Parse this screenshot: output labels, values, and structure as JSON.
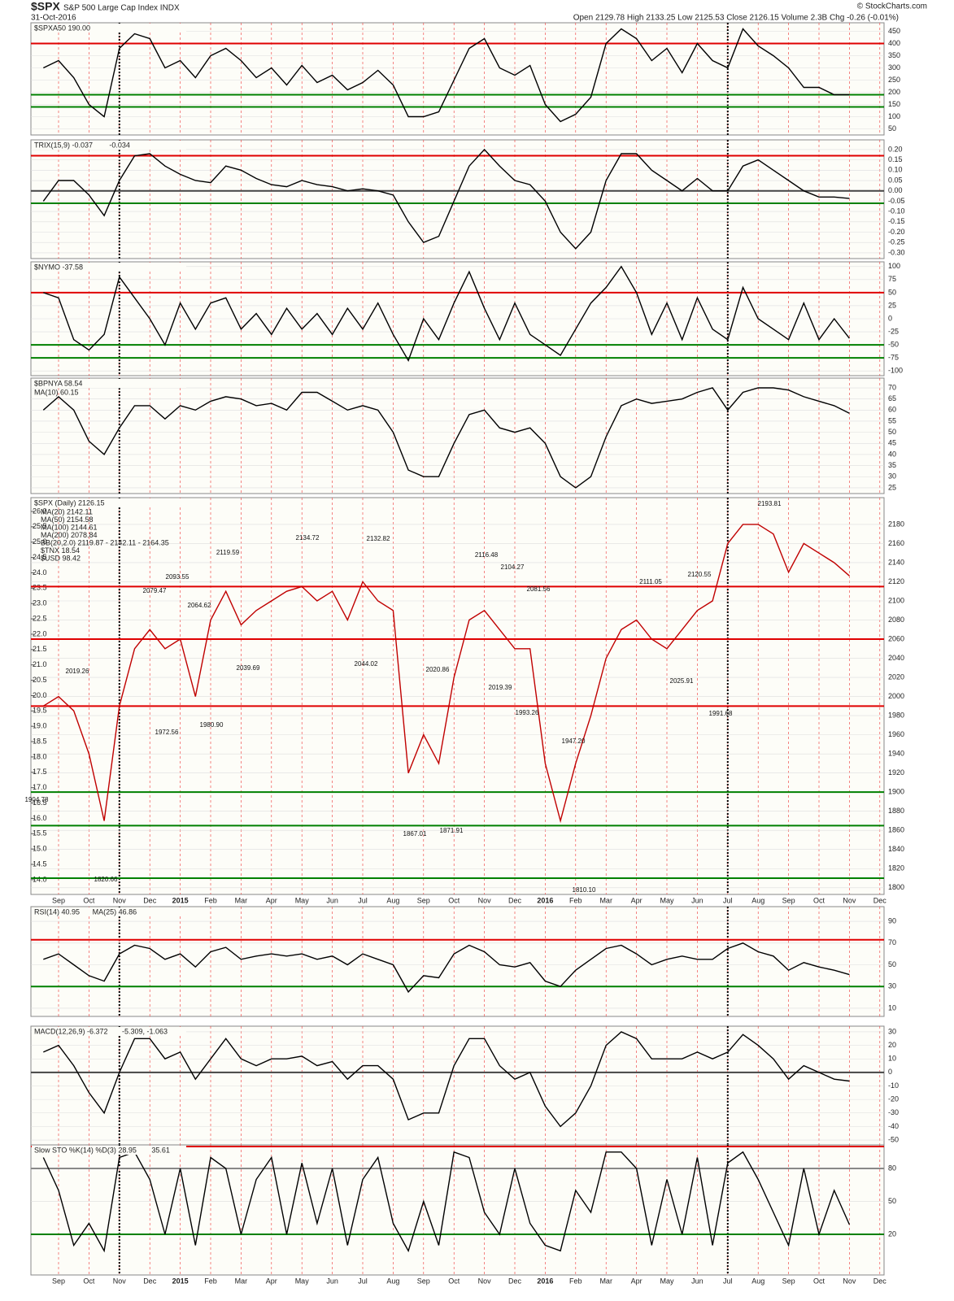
{
  "header": {
    "symbol": "$SPX",
    "name": "S&P 500 Large Cap Index INDX",
    "date": "31-Oct-2016",
    "quote": "Open 2129.78 High 2133.25 Low 2125.53 Close 2126.15 Volume 2.3B Chg -0.26 (-0.01%)",
    "credit": "© StockCharts.com"
  },
  "chart_data": [
    {
      "type": "line",
      "title": "$SPXA50 190.00",
      "series": [
        {
          "color": "#000000",
          "values": [
            300,
            330,
            260,
            150,
            100,
            380,
            440,
            420,
            300,
            330,
            260,
            350,
            380,
            330,
            260,
            300,
            230,
            310,
            240,
            270,
            210,
            240,
            290,
            230,
            100,
            100,
            120,
            250,
            380,
            420,
            300,
            270,
            310,
            150,
            80,
            110,
            180,
            400,
            460,
            420,
            330,
            380,
            280,
            400,
            330,
            300,
            460,
            390,
            350,
            300,
            220,
            220,
            190,
            190
          ]
        }
      ],
      "ylim": [
        25,
        485
      ],
      "yticks": [
        50,
        100,
        150,
        200,
        250,
        300,
        350,
        400,
        450
      ],
      "hlines": [
        {
          "value": 400,
          "color": "#e00000"
        },
        {
          "value": 190,
          "color": "#008000"
        },
        {
          "value": 140,
          "color": "#008000"
        }
      ]
    },
    {
      "type": "line",
      "title": "TRIX(15,9) -0.037",
      "subtitle": "-0.034",
      "series": [
        {
          "color": "#000000",
          "values": [
            -0.05,
            0.05,
            0.05,
            -0.02,
            -0.12,
            0.05,
            0.17,
            0.18,
            0.12,
            0.08,
            0.05,
            0.04,
            0.12,
            0.1,
            0.06,
            0.03,
            0.02,
            0.05,
            0.03,
            0.02,
            0.0,
            0.01,
            0.0,
            -0.02,
            -0.15,
            -0.25,
            -0.22,
            -0.05,
            0.12,
            0.2,
            0.12,
            0.05,
            0.03,
            -0.05,
            -0.2,
            -0.28,
            -0.2,
            0.05,
            0.18,
            0.18,
            0.1,
            0.05,
            0.0,
            0.06,
            0.0,
            0.0,
            0.12,
            0.15,
            0.1,
            0.05,
            0.0,
            -0.03,
            -0.03,
            -0.037
          ]
        }
      ],
      "ylim": [
        -0.328,
        0.247
      ],
      "yticks": [
        {
          "value": 0.2,
          "label": "0.20"
        },
        {
          "value": 0.15,
          "label": "0.15"
        },
        {
          "value": 0.1,
          "label": "0.10"
        },
        {
          "value": 0.05,
          "label": "0.05"
        },
        {
          "value": 0,
          "label": "0.00"
        },
        {
          "value": -0.05,
          "label": "-0.05"
        },
        {
          "value": -0.1,
          "label": "-0.10"
        },
        {
          "value": -0.15,
          "label": "-0.15"
        },
        {
          "value": -0.2,
          "label": "-0.20"
        },
        {
          "value": -0.25,
          "label": "-0.25"
        },
        {
          "value": -0.3,
          "label": "-0.30"
        }
      ],
      "hlines": [
        {
          "value": 0.17,
          "color": "#e00000"
        },
        {
          "value": 0,
          "color": "#444444"
        },
        {
          "value": -0.06,
          "color": "#008000"
        }
      ]
    },
    {
      "type": "line",
      "title": "$NYMO -37.58",
      "series": [
        {
          "color": "#000000",
          "values": [
            50,
            40,
            -40,
            -60,
            -30,
            80,
            40,
            0,
            -50,
            30,
            -20,
            30,
            40,
            -20,
            10,
            -30,
            20,
            -20,
            10,
            -30,
            20,
            -20,
            30,
            -30,
            -80,
            0,
            -40,
            30,
            90,
            20,
            -40,
            30,
            -30,
            -50,
            -70,
            -20,
            30,
            60,
            100,
            50,
            -30,
            30,
            -40,
            40,
            -20,
            -40,
            60,
            0,
            -20,
            -40,
            30,
            -40,
            0,
            -37.58
          ]
        }
      ],
      "ylim": [
        -109,
        109
      ],
      "yticks": [
        100,
        75,
        50,
        25,
        0,
        -25,
        -50,
        -75,
        -100
      ],
      "hlines": [
        {
          "value": 50,
          "color": "#e00000"
        },
        {
          "value": -50,
          "color": "#008000"
        },
        {
          "value": -75,
          "color": "#008000"
        }
      ]
    },
    {
      "type": "line",
      "title": "$BPNYA 58.54",
      "subtitle": "MA(10) 60.15",
      "series": [
        {
          "color": "#000000",
          "values": [
            60,
            66,
            60,
            46,
            40,
            52,
            62,
            62,
            56,
            62,
            60,
            64,
            66,
            65,
            62,
            63,
            60,
            68,
            68,
            64,
            60,
            62,
            60,
            50,
            33,
            30,
            30,
            45,
            58,
            60,
            52,
            50,
            52,
            45,
            30,
            25,
            30,
            48,
            62,
            65,
            63,
            64,
            65,
            68,
            70,
            60,
            68,
            70,
            70,
            69,
            66,
            64,
            62,
            58.54
          ]
        }
      ],
      "ylim": [
        22.4,
        74.4
      ],
      "yticks": [
        25,
        30,
        35,
        40,
        45,
        50,
        55,
        60,
        65,
        70
      ],
      "hlines": []
    },
    {
      "type": "line",
      "title": "$SPX (Daily) 2126.15",
      "legend": [
        "MA(20) 2142.11",
        "MA(50) 2154.58",
        "MA(100) 2144.61",
        "MA(200) 2078.84",
        "BB(20,2.0) 2119.87 - 2142.11 - 2164.35",
        "$TNX 18.54",
        "$USD 98.42"
      ],
      "categories": [
        null,
        "Sep",
        null,
        "Oct",
        null,
        "Nov",
        null,
        "Dec",
        null,
        "2015",
        null,
        "Feb",
        null,
        "Mar",
        null,
        "Apr",
        null,
        "May",
        null,
        "Jun",
        null,
        "Jul",
        null,
        "Aug",
        null,
        "Sep",
        null,
        "Oct",
        null,
        "Nov",
        null,
        "Dec",
        null,
        "2016",
        null,
        "Feb",
        null,
        "Mar",
        null,
        "Apr",
        null,
        "May",
        null,
        "Jun",
        null,
        "Jul",
        null,
        "Aug",
        null,
        "Sep",
        null,
        "Oct",
        null,
        "Nov",
        null,
        "Dec"
      ],
      "series": [
        {
          "color": "#c00000",
          "values": [
            1990,
            2000,
            1985,
            1940,
            1870,
            1990,
            2050,
            2070,
            2050,
            2060,
            2000,
            2080,
            2110,
            2075,
            2090,
            2100,
            2110,
            2115,
            2100,
            2110,
            2080,
            2120,
            2100,
            2090,
            1920,
            1960,
            1930,
            2020,
            2080,
            2090,
            2070,
            2050,
            2050,
            1930,
            1870,
            1930,
            1980,
            2040,
            2070,
            2080,
            2060,
            2050,
            2070,
            2090,
            2100,
            2160,
            2180,
            2180,
            2170,
            2130,
            2160,
            2150,
            2140,
            2126.15,
            null,
            null
          ]
        }
      ],
      "ylim": [
        1793,
        2208
      ],
      "yticks": [
        1800,
        1820,
        1840,
        1860,
        1880,
        1900,
        1920,
        1940,
        1960,
        1980,
        2000,
        2020,
        2040,
        2060,
        2080,
        2100,
        2120,
        2140,
        2160,
        2180
      ],
      "y2lim": [
        13.52,
        26.45
      ],
      "y2ticks": [
        {
          "value": 14,
          "label": "14.0"
        },
        {
          "value": 14.5,
          "label": "14.5"
        },
        {
          "value": 15,
          "label": "15.0"
        },
        {
          "value": 15.5,
          "label": "15.5"
        },
        {
          "value": 16,
          "label": "16.0"
        },
        {
          "value": 16.5,
          "label": "16.5"
        },
        {
          "value": 17,
          "label": "17.0"
        },
        {
          "value": 17.5,
          "label": "17.5"
        },
        {
          "value": 18,
          "label": "18.0"
        },
        {
          "value": 18.5,
          "label": "18.5"
        },
        {
          "value": 19,
          "label": "19.0"
        },
        {
          "value": 19.5,
          "label": "19.5"
        },
        {
          "value": 20,
          "label": "20.0"
        },
        {
          "value": 20.5,
          "label": "20.5"
        },
        {
          "value": 21,
          "label": "21.0"
        },
        {
          "value": 21.5,
          "label": "21.5"
        },
        {
          "value": 22,
          "label": "22.0"
        },
        {
          "value": 22.5,
          "label": "22.5"
        },
        {
          "value": 23,
          "label": "23.0"
        },
        {
          "value": 23.5,
          "label": "23.5"
        },
        {
          "value": 24,
          "label": "24.0"
        },
        {
          "value": 24.5,
          "label": "24.5"
        },
        {
          "value": 25,
          "label": "25.0"
        },
        {
          "value": 25.5,
          "label": "25.5"
        },
        {
          "value": 26,
          "label": "26.0"
        }
      ],
      "hlines": [
        {
          "value": 2115,
          "color": "#e00000"
        },
        {
          "value": 2060,
          "color": "#e00000"
        },
        {
          "value": 1990,
          "color": "#e00000"
        },
        {
          "value": 1900,
          "color": "#008000"
        },
        {
          "value": 1865,
          "color": "#008000"
        },
        {
          "value": 1810,
          "color": "#008000"
        }
      ],
      "annotations": [
        "2134.72",
        "2132.82",
        "2119.59",
        "2116.48",
        "2104.27",
        "2093.55",
        "2081.56",
        "2079.47",
        "2064.62",
        "2044.02",
        "2039.69",
        "2019.26",
        "2020.86",
        "2019.39",
        "1993.26",
        "1991.68",
        "1972.56",
        "1980.90",
        "1947.20",
        "1904.78",
        "1867.01",
        "1871.91",
        "1820.66",
        "1810.10",
        "2111.05",
        "2120.55",
        "2025.91",
        "2193.81"
      ]
    },
    {
      "type": "line",
      "title": "RSI(14) 40.95",
      "subtitle": "MA(25) 46.86",
      "series": [
        {
          "color": "#000000",
          "values": [
            55,
            60,
            50,
            40,
            35,
            60,
            68,
            65,
            55,
            60,
            48,
            62,
            66,
            55,
            58,
            60,
            58,
            60,
            55,
            58,
            50,
            60,
            55,
            50,
            25,
            40,
            38,
            60,
            68,
            62,
            50,
            48,
            52,
            35,
            30,
            45,
            55,
            65,
            68,
            60,
            50,
            55,
            58,
            55,
            55,
            65,
            70,
            62,
            58,
            45,
            52,
            48,
            45,
            40.95
          ]
        }
      ],
      "ylim": [
        2.5,
        103.5
      ],
      "yticks": [
        10,
        30,
        50,
        70,
        90
      ],
      "hlines": [
        {
          "value": 73,
          "color": "#e00000"
        },
        {
          "value": 30,
          "color": "#008000"
        }
      ]
    },
    {
      "type": "line",
      "title": "MACD(12,26,9) -6.372",
      "subtitle": "-5.309, -1.063",
      "series": [
        {
          "color": "#000000",
          "values": [
            15,
            20,
            5,
            -15,
            -30,
            0,
            25,
            25,
            10,
            15,
            -5,
            10,
            25,
            10,
            5,
            10,
            10,
            12,
            5,
            8,
            -5,
            5,
            5,
            -5,
            -35,
            -30,
            -30,
            5,
            25,
            25,
            5,
            -5,
            0,
            -25,
            -40,
            -30,
            -10,
            20,
            30,
            25,
            10,
            10,
            10,
            15,
            10,
            15,
            28,
            20,
            10,
            -5,
            5,
            0,
            -5,
            -6.372
          ]
        }
      ],
      "ylim": [
        -53.6,
        34.2
      ],
      "yticks": [
        30,
        20,
        10,
        0,
        -10,
        -20,
        -30,
        -40,
        -50
      ],
      "hlines": [
        {
          "value": 0,
          "color": "#444444"
        }
      ]
    },
    {
      "type": "line",
      "title": "Slow STO %K(14) %D(3) 28.95",
      "subtitle": "35.61",
      "categories": [
        null,
        "Sep",
        null,
        "Oct",
        null,
        "Nov",
        null,
        "Dec",
        null,
        "2015",
        null,
        "Feb",
        null,
        "Mar",
        null,
        "Apr",
        null,
        "May",
        null,
        "Jun",
        null,
        "Jul",
        null,
        "Aug",
        null,
        "Sep",
        null,
        "Oct",
        null,
        "Nov",
        null,
        "Dec",
        null,
        "2016",
        null,
        "Feb",
        null,
        "Mar",
        null,
        "Apr",
        null,
        "May",
        null,
        "Jun",
        null,
        "Jul",
        null,
        "Aug",
        null,
        "Sep",
        null,
        "Oct",
        null,
        "Nov",
        null,
        "Dec"
      ],
      "series": [
        {
          "color": "#000000",
          "values": [
            90,
            60,
            10,
            30,
            5,
            90,
            95,
            70,
            20,
            80,
            10,
            90,
            80,
            20,
            70,
            90,
            20,
            85,
            30,
            80,
            10,
            70,
            90,
            30,
            5,
            50,
            10,
            95,
            90,
            40,
            20,
            80,
            30,
            10,
            5,
            60,
            40,
            95,
            95,
            80,
            10,
            70,
            20,
            90,
            10,
            85,
            95,
            70,
            40,
            10,
            80,
            20,
            60,
            28.95,
            null,
            null
          ]
        }
      ],
      "ylim": [
        -17,
        101.5
      ],
      "yticks": [
        20,
        50,
        80
      ],
      "hlines": [
        {
          "value": 100,
          "color": "#e00000"
        },
        {
          "value": 80,
          "color": "#888888"
        },
        {
          "value": 20,
          "color": "#008000"
        }
      ]
    }
  ]
}
